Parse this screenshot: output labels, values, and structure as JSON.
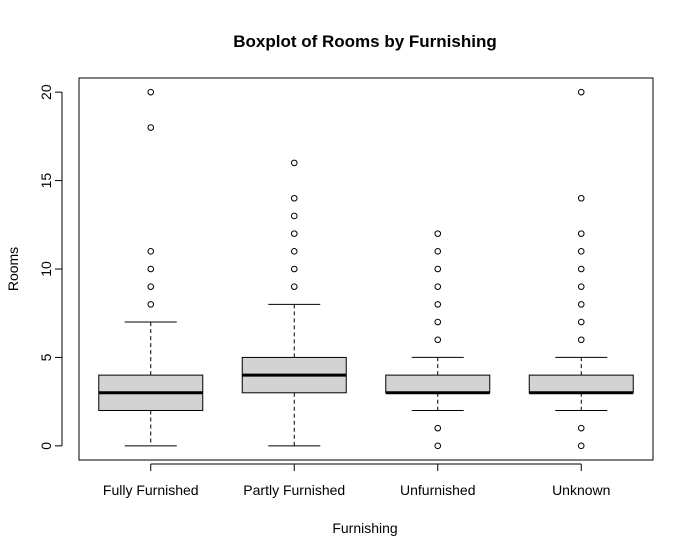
{
  "chart_data": {
    "type": "boxplot",
    "title": "Boxplot of Rooms by Furnishing",
    "xlabel": "Furnishing",
    "ylabel": "Rooms",
    "ylim": [
      -0.8,
      20.8
    ],
    "yticks": [
      0,
      5,
      10,
      15,
      20
    ],
    "categories": [
      "Fully Furnished",
      "Partly Furnished",
      "Unfurnished",
      "Unknown"
    ],
    "boxes": [
      {
        "name": "Fully Furnished",
        "whisker_low": 0,
        "q1": 2,
        "median": 3,
        "q3": 4,
        "whisker_high": 7,
        "outliers": [
          8,
          9,
          10,
          11,
          18,
          20
        ]
      },
      {
        "name": "Partly Furnished",
        "whisker_low": 0,
        "q1": 3,
        "median": 4,
        "q3": 5,
        "whisker_high": 8,
        "outliers": [
          9,
          10,
          11,
          12,
          13,
          14,
          16
        ]
      },
      {
        "name": "Unfurnished",
        "whisker_low": 2,
        "q1": 3,
        "median": 3,
        "q3": 4,
        "whisker_high": 5,
        "outliers": [
          0,
          1,
          6,
          7,
          8,
          9,
          10,
          11,
          12
        ]
      },
      {
        "name": "Unknown",
        "whisker_low": 2,
        "q1": 3,
        "median": 3,
        "q3": 4,
        "whisker_high": 5,
        "outliers": [
          0,
          1,
          6,
          7,
          8,
          9,
          10,
          11,
          12,
          14,
          20
        ]
      }
    ],
    "box_fill": "#d3d3d3",
    "grid": false,
    "legend": "none"
  }
}
